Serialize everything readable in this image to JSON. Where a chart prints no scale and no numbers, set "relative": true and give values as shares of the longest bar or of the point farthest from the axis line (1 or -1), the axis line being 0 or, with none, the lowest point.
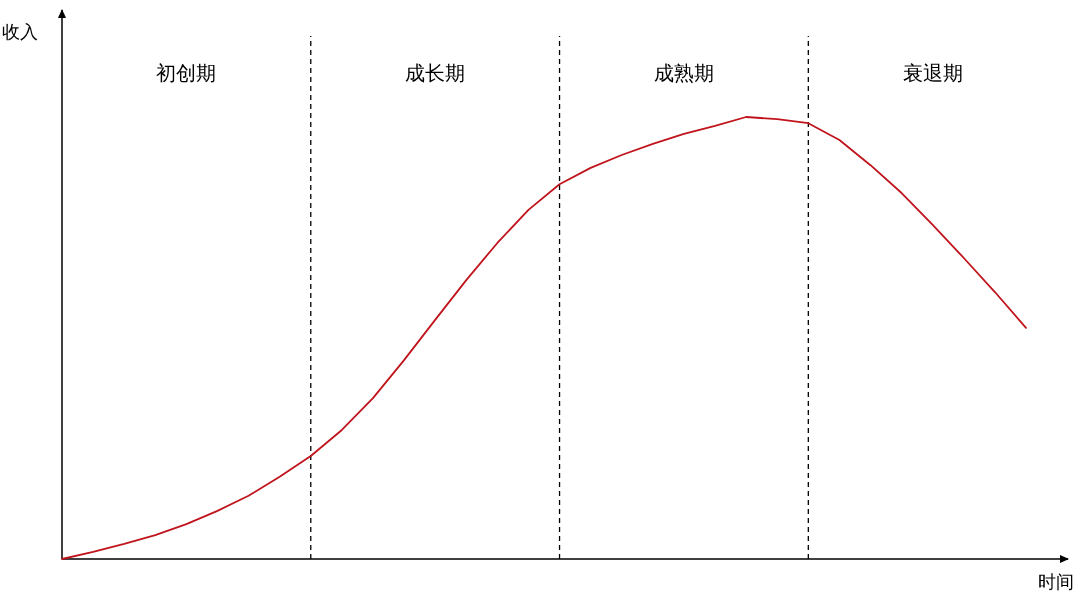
{
  "chart_data": {
    "type": "line",
    "relative": true,
    "grid": "x",
    "xlabel": "时间",
    "ylabel": "收入",
    "categories": [
      null,
      null,
      null,
      null,
      null,
      null,
      null,
      null,
      null,
      null,
      null,
      null,
      null,
      null,
      null,
      null,
      null,
      null,
      null,
      null,
      null,
      null,
      null,
      null,
      null,
      null,
      null,
      null,
      null,
      null,
      null,
      null
    ],
    "series": [
      {
        "color": "#c0141c",
        "values": [
          0,
          0.016,
          0.034,
          0.054,
          0.079,
          0.109,
          0.143,
          0.186,
          0.233,
          0.292,
          0.364,
          0.45,
          0.541,
          0.631,
          0.715,
          0.79,
          0.848,
          0.885,
          0.914,
          0.939,
          0.962,
          0.98,
          1.0,
          0.995,
          0.986,
          0.948,
          0.891,
          0.828,
          0.756,
          0.681,
          0.604,
          0.523
        ]
      }
    ],
    "annotations": [
      "初创期",
      "成长期",
      "成熟期",
      "衰退期"
    ]
  }
}
